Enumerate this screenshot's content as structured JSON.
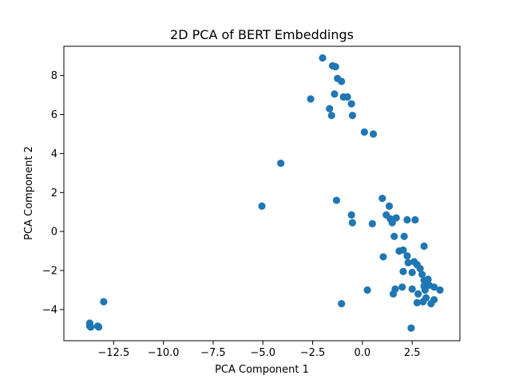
{
  "chart_data": {
    "type": "scatter",
    "title": "2D PCA of BERT Embeddings",
    "xlabel": "PCA Component 1",
    "ylabel": "PCA Component 2",
    "xlim": [
      -15.0,
      4.9
    ],
    "ylim": [
      -5.6,
      9.5
    ],
    "xticks": [
      -12.5,
      -10.0,
      -7.5,
      -5.0,
      -2.5,
      0.0,
      2.5
    ],
    "xtick_labels": [
      "−12.5",
      "−10.0",
      "−7.5",
      "−5.0",
      "−2.5",
      "0.0",
      "2.5"
    ],
    "yticks": [
      -4,
      -2,
      0,
      2,
      4,
      6,
      8
    ],
    "ytick_labels": [
      "−4",
      "−2",
      "0",
      "2",
      "4",
      "6",
      "8"
    ],
    "grid": false,
    "marker_color": "#1f77b4",
    "points": [
      [
        -2.0,
        8.9
      ],
      [
        -1.5,
        8.5
      ],
      [
        -1.35,
        8.45
      ],
      [
        -1.25,
        7.85
      ],
      [
        -1.05,
        7.7
      ],
      [
        -1.4,
        7.05
      ],
      [
        -0.95,
        6.9
      ],
      [
        -0.75,
        6.9
      ],
      [
        -0.55,
        6.55
      ],
      [
        -2.6,
        6.8
      ],
      [
        -1.65,
        6.3
      ],
      [
        -1.55,
        5.95
      ],
      [
        -0.5,
        5.95
      ],
      [
        0.1,
        5.1
      ],
      [
        0.55,
        5.0
      ],
      [
        -4.1,
        3.5
      ],
      [
        -5.05,
        1.3
      ],
      [
        -1.3,
        1.6
      ],
      [
        -0.55,
        0.85
      ],
      [
        -0.5,
        0.45
      ],
      [
        0.5,
        0.4
      ],
      [
        1.0,
        1.7
      ],
      [
        1.35,
        1.3
      ],
      [
        1.2,
        0.85
      ],
      [
        1.4,
        0.65
      ],
      [
        1.5,
        0.45
      ],
      [
        1.7,
        0.7
      ],
      [
        2.25,
        0.6
      ],
      [
        2.65,
        0.6
      ],
      [
        1.6,
        -0.25
      ],
      [
        2.1,
        -0.25
      ],
      [
        1.05,
        -1.3
      ],
      [
        1.85,
        -1.0
      ],
      [
        2.05,
        -0.95
      ],
      [
        3.1,
        -0.75
      ],
      [
        2.25,
        -1.25
      ],
      [
        2.3,
        -1.6
      ],
      [
        2.6,
        -1.55
      ],
      [
        2.75,
        -1.7
      ],
      [
        2.9,
        -1.9
      ],
      [
        2.05,
        -2.05
      ],
      [
        2.5,
        -2.1
      ],
      [
        3.0,
        -2.2
      ],
      [
        3.1,
        -2.5
      ],
      [
        3.3,
        -2.45
      ],
      [
        3.1,
        -2.8
      ],
      [
        3.35,
        -2.75
      ],
      [
        3.6,
        -2.85
      ],
      [
        3.9,
        -3.0
      ],
      [
        3.15,
        -3.0
      ],
      [
        2.5,
        -2.95
      ],
      [
        2.0,
        -2.85
      ],
      [
        1.65,
        -2.95
      ],
      [
        1.55,
        -3.2
      ],
      [
        0.25,
        -3.0
      ],
      [
        2.8,
        -3.2
      ],
      [
        3.2,
        -3.4
      ],
      [
        3.6,
        -3.5
      ],
      [
        3.45,
        -3.7
      ],
      [
        3.05,
        -3.6
      ],
      [
        2.75,
        -3.65
      ],
      [
        -1.05,
        -3.7
      ],
      [
        2.45,
        -4.95
      ],
      [
        -13.0,
        -3.6
      ],
      [
        -13.7,
        -4.7
      ],
      [
        -13.7,
        -4.85
      ],
      [
        -13.65,
        -4.9
      ],
      [
        -13.3,
        -4.85
      ],
      [
        -13.25,
        -4.9
      ]
    ]
  }
}
